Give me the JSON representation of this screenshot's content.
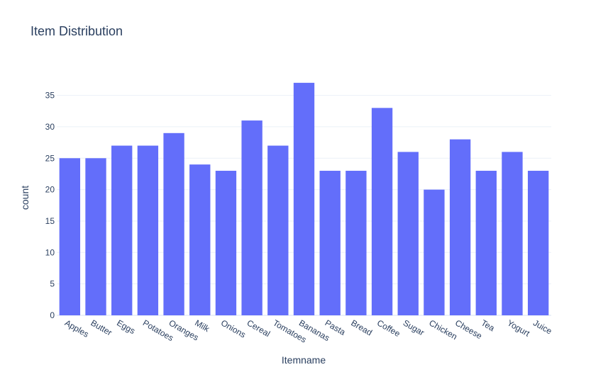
{
  "chart_data": {
    "type": "bar",
    "title": "Item Distribution",
    "xlabel": "Itemname",
    "ylabel": "count",
    "categories": [
      "Apples",
      "Butter",
      "Eggs",
      "Potatoes",
      "Oranges",
      "Milk",
      "Onions",
      "Cereal",
      "Tomatoes",
      "Bananas",
      "Pasta",
      "Bread",
      "Coffee",
      "Sugar",
      "Chicken",
      "Cheese",
      "Tea",
      "Yogurt",
      "Juice"
    ],
    "values": [
      25,
      25,
      27,
      27,
      29,
      24,
      23,
      31,
      27,
      37,
      23,
      23,
      33,
      26,
      20,
      28,
      23,
      26,
      23
    ],
    "ylim": [
      0,
      38.9
    ],
    "yticks": [
      0,
      5,
      10,
      15,
      20,
      25,
      30,
      35
    ],
    "grid": true,
    "legend": "none",
    "bar_color": "#636efa"
  }
}
